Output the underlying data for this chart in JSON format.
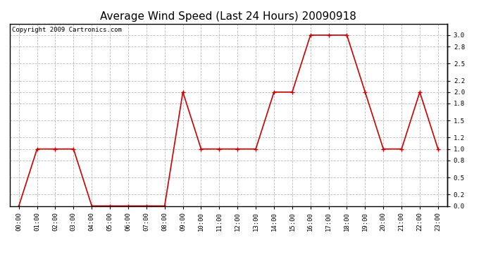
{
  "title": "Average Wind Speed (Last 24 Hours) 20090918",
  "copyright_text": "Copyright 2009 Cartronics.com",
  "hours": [
    0,
    1,
    2,
    3,
    4,
    5,
    6,
    7,
    8,
    9,
    10,
    11,
    12,
    13,
    14,
    15,
    16,
    17,
    18,
    19,
    20,
    21,
    22,
    23
  ],
  "x_labels": [
    "00:00",
    "01:00",
    "02:00",
    "03:00",
    "04:00",
    "05:00",
    "06:00",
    "07:00",
    "08:00",
    "09:00",
    "10:00",
    "11:00",
    "12:00",
    "13:00",
    "14:00",
    "15:00",
    "16:00",
    "17:00",
    "18:00",
    "19:00",
    "20:00",
    "21:00",
    "22:00",
    "23:00"
  ],
  "values": [
    0.0,
    1.0,
    1.0,
    1.0,
    0.0,
    0.0,
    0.0,
    0.0,
    0.0,
    2.0,
    1.0,
    1.0,
    1.0,
    1.0,
    2.0,
    2.0,
    3.0,
    3.0,
    3.0,
    2.0,
    1.0,
    1.0,
    2.0,
    1.0
  ],
  "line_color": "#cc0000",
  "marker_style": "+",
  "marker_size": 4,
  "marker_color": "#cc0000",
  "bg_color": "#ffffff",
  "plot_bg_color": "#ffffff",
  "grid_color": "#bbbbbb",
  "grid_linestyle": "--",
  "ylim": [
    0.0,
    3.2
  ],
  "yticks": [
    0.0,
    0.2,
    0.5,
    0.8,
    1.0,
    1.2,
    1.5,
    1.8,
    2.0,
    2.2,
    2.5,
    2.8,
    3.0
  ],
  "title_fontsize": 11,
  "copyright_fontsize": 6.5,
  "tick_fontsize": 6.5,
  "line_width": 1.2
}
